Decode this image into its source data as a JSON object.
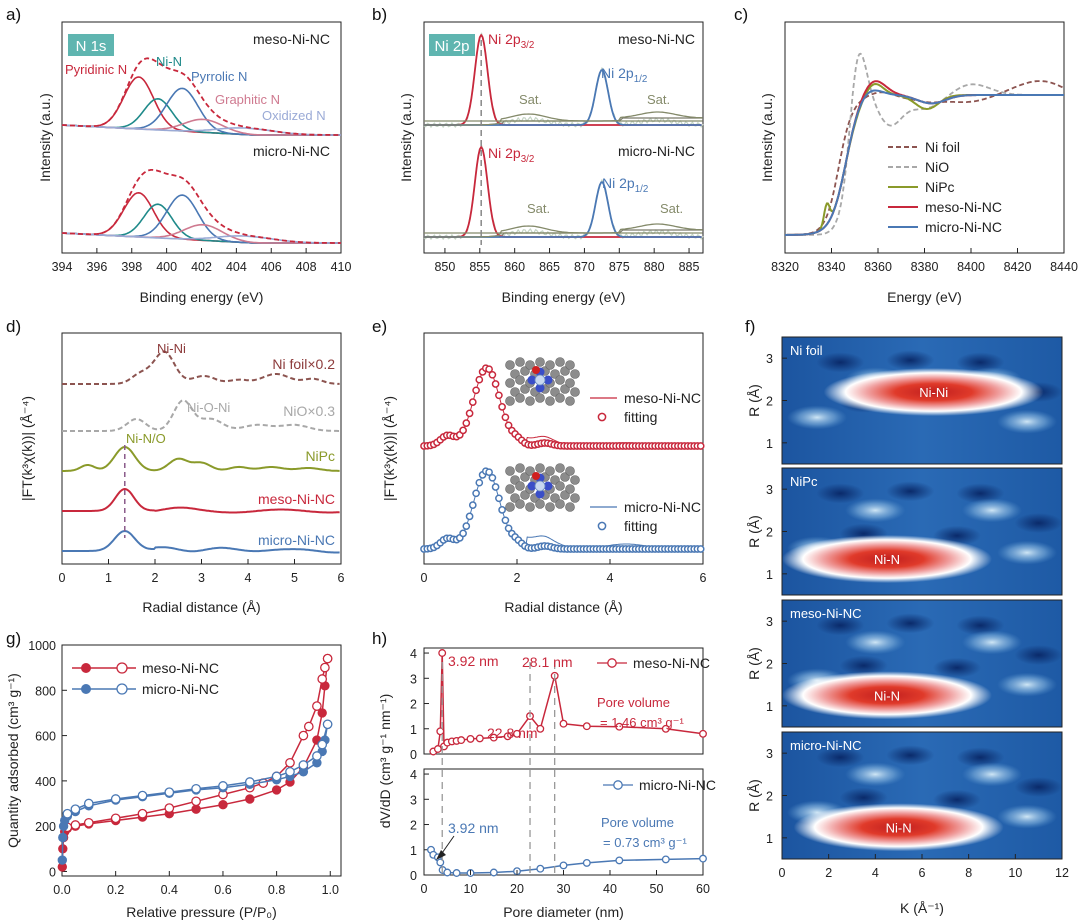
{
  "colors": {
    "red": "#c8283c",
    "blue": "#4a78b4",
    "teal": "#1f8a8a",
    "pink": "#cf7a90",
    "lav": "#9aaad6",
    "olive": "#8a9a2a",
    "olivetxt": "#848a6a",
    "brown": "#8c5450",
    "gray": "#a8a8a8",
    "darkred": "#8c3a3a",
    "badge": "#5fb5b0"
  },
  "chart_data": [
    {
      "panel": "a",
      "type": "line",
      "badge": "N 1s",
      "xlabel": "Binding energy (eV)",
      "ylabel": "Intensity (a.u.)",
      "xlim": [
        394,
        410
      ],
      "xticks": [
        "394",
        "396",
        "398",
        "400",
        "402",
        "404",
        "406",
        "408",
        "410"
      ],
      "ylim": [
        0,
        1
      ],
      "samples": [
        "meso-Ni-NC",
        "micro-Ni-NC"
      ],
      "peaks": [
        {
          "name": "Pyridinic N",
          "center": 398.4,
          "meso_height": 0.4,
          "micro_height": 0.34
        },
        {
          "name": "Ni-N",
          "center": 399.5,
          "meso_height": 0.24,
          "micro_height": 0.26
        },
        {
          "name": "Pyrrolic N",
          "center": 400.9,
          "meso_height": 0.33,
          "micro_height": 0.34
        },
        {
          "name": "Graphitic N",
          "center": 402.1,
          "meso_height": 0.1,
          "micro_height": 0.12
        },
        {
          "name": "Oxidized N",
          "center": 404.5,
          "meso_height": 0.05,
          "micro_height": 0.05
        }
      ]
    },
    {
      "panel": "b",
      "type": "line",
      "badge": "Ni 2p",
      "xlabel": "Binding energy (eV)",
      "ylabel": "Intensity (a.u.)",
      "xlim": [
        847,
        887
      ],
      "xticks": [
        "850",
        "855",
        "860",
        "865",
        "870",
        "875",
        "880",
        "885"
      ],
      "ylim": [
        0,
        1
      ],
      "samples": [
        "meso-Ni-NC",
        "micro-Ni-NC"
      ],
      "peaks": [
        {
          "name": "Ni 2p3/2",
          "center": 855.2
        },
        {
          "name": "Sat.",
          "center": 862.0
        },
        {
          "name": "Ni 2p1/2",
          "center": 872.5
        },
        {
          "name": "Sat.",
          "center": 880.5
        }
      ],
      "dashed_line_x": 855.2
    },
    {
      "panel": "c",
      "type": "line",
      "xlabel": "Energy (eV)",
      "ylabel": "Intensity (a.u.)",
      "xlim": [
        8320,
        8440
      ],
      "xticks": [
        "8320",
        "8340",
        "8360",
        "8380",
        "8400",
        "8420",
        "8440"
      ],
      "ylim": [
        0,
        1
      ],
      "legend_position": "bottom-right",
      "series": [
        {
          "name": "Ni foil",
          "style": "dash"
        },
        {
          "name": "NiO",
          "style": "dash"
        },
        {
          "name": "NiPc",
          "style": "solid"
        },
        {
          "name": "meso-Ni-NC",
          "style": "solid"
        },
        {
          "name": "micro-Ni-NC",
          "style": "solid"
        }
      ],
      "edge_energy": 8345,
      "white_line_peak": 8352
    },
    {
      "panel": "d",
      "type": "line",
      "xlabel": "Radial distance (Å)",
      "ylabel": "|FT(k³χ(k))| (Å⁻⁴)",
      "xlim": [
        0,
        6
      ],
      "xticks": [
        "0",
        "1",
        "2",
        "3",
        "4",
        "5",
        "6"
      ],
      "ylim": [
        0,
        1
      ],
      "series": [
        {
          "name": "Ni foil×0.2",
          "peak_label": "Ni-Ni",
          "peak_R": 2.2
        },
        {
          "name": "NiO×0.3",
          "peak_label": "Ni-O-Ni",
          "peak_R": 2.6
        },
        {
          "name": "NiPc",
          "peak_label": "Ni-N/O",
          "peak_R": 1.35
        },
        {
          "name": "meso-Ni-NC",
          "peak_R": 1.35
        },
        {
          "name": "micro-Ni-NC",
          "peak_R": 1.35
        }
      ],
      "dashed_line_x": 1.35
    },
    {
      "panel": "e",
      "type": "line",
      "xlabel": "Radial distance (Å)",
      "ylabel": "|FT(k³χ(k))| (Å⁻⁴)",
      "xlim": [
        0,
        6
      ],
      "xticks": [
        "0",
        "2",
        "4",
        "6"
      ],
      "ylim": [
        0,
        1
      ],
      "series": [
        {
          "name": "meso-Ni-NC",
          "fit_name": "fitting",
          "peak_R": 1.35
        },
        {
          "name": "micro-Ni-NC",
          "fit_name": "fitting",
          "peak_R": 1.35
        }
      ]
    },
    {
      "panel": "f",
      "type": "heatmap",
      "xlabel": "K (Å⁻¹)",
      "ylabel": "R (Å)",
      "xlim": [
        0,
        12
      ],
      "xticks": [
        "0",
        "2",
        "4",
        "6",
        "8",
        "10",
        "12"
      ],
      "ylim": [
        0.5,
        3.5
      ],
      "yticks": [
        "1",
        "2",
        "3"
      ],
      "maps": [
        {
          "sample": "Ni foil",
          "feature": "Ni-Ni",
          "k_center": 6.5,
          "R_center": 2.2
        },
        {
          "sample": "NiPc",
          "feature": "Ni-N",
          "k_center": 4.5,
          "R_center": 1.35
        },
        {
          "sample": "meso-Ni-NC",
          "feature": "Ni-N",
          "k_center": 4.5,
          "R_center": 1.25
        },
        {
          "sample": "micro-Ni-NC",
          "feature": "Ni-N",
          "k_center": 5.0,
          "R_center": 1.25
        }
      ]
    },
    {
      "panel": "g",
      "type": "line",
      "xlabel": "Relative pressure (P/P₀)",
      "ylabel": "Quantity adsorbed (cm³ g⁻¹)",
      "xlim": [
        0,
        1.04
      ],
      "xticks": [
        "0.0",
        "0.2",
        "0.4",
        "0.6",
        "0.8",
        "1.0"
      ],
      "ylim": [
        -20,
        1000
      ],
      "yticks": [
        "0",
        "200",
        "400",
        "600",
        "800",
        "1000"
      ],
      "series": [
        {
          "name": "meso-Ni-NC",
          "adsorption": [
            [
              0.001,
              20
            ],
            [
              0.003,
              100
            ],
            [
              0.006,
              150
            ],
            [
              0.01,
              175
            ],
            [
              0.02,
              190
            ],
            [
              0.05,
              200
            ],
            [
              0.1,
              210
            ],
            [
              0.2,
              225
            ],
            [
              0.3,
              240
            ],
            [
              0.4,
              255
            ],
            [
              0.5,
              275
            ],
            [
              0.6,
              295
            ],
            [
              0.7,
              320
            ],
            [
              0.8,
              360
            ],
            [
              0.85,
              395
            ],
            [
              0.9,
              460
            ],
            [
              0.95,
              580
            ],
            [
              0.97,
              700
            ],
            [
              0.98,
              820
            ],
            [
              0.99,
              940
            ]
          ],
          "desorption": [
            [
              0.99,
              940
            ],
            [
              0.98,
              900
            ],
            [
              0.97,
              850
            ],
            [
              0.95,
              730
            ],
            [
              0.92,
              640
            ],
            [
              0.9,
              600
            ],
            [
              0.85,
              480
            ],
            [
              0.8,
              420
            ],
            [
              0.75,
              390
            ],
            [
              0.7,
              370
            ],
            [
              0.6,
              340
            ],
            [
              0.5,
              310
            ],
            [
              0.4,
              280
            ],
            [
              0.3,
              255
            ],
            [
              0.2,
              235
            ],
            [
              0.1,
              215
            ],
            [
              0.05,
              205
            ],
            [
              0.02,
              195
            ]
          ]
        },
        {
          "name": "micro-Ni-NC",
          "adsorption": [
            [
              0.001,
              50
            ],
            [
              0.003,
              150
            ],
            [
              0.006,
              200
            ],
            [
              0.01,
              225
            ],
            [
              0.02,
              245
            ],
            [
              0.05,
              265
            ],
            [
              0.1,
              290
            ],
            [
              0.2,
              315
            ],
            [
              0.3,
              330
            ],
            [
              0.4,
              345
            ],
            [
              0.5,
              360
            ],
            [
              0.6,
              370
            ],
            [
              0.7,
              385
            ],
            [
              0.8,
              405
            ],
            [
              0.85,
              420
            ],
            [
              0.9,
              440
            ],
            [
              0.95,
              480
            ],
            [
              0.97,
              530
            ],
            [
              0.98,
              580
            ],
            [
              0.99,
              650
            ]
          ],
          "desorption": [
            [
              0.99,
              650
            ],
            [
              0.97,
              560
            ],
            [
              0.95,
              510
            ],
            [
              0.9,
              470
            ],
            [
              0.85,
              440
            ],
            [
              0.8,
              420
            ],
            [
              0.7,
              395
            ],
            [
              0.6,
              378
            ],
            [
              0.5,
              365
            ],
            [
              0.4,
              350
            ],
            [
              0.3,
              335
            ],
            [
              0.2,
              320
            ],
            [
              0.1,
              300
            ],
            [
              0.05,
              275
            ],
            [
              0.02,
              255
            ]
          ]
        }
      ]
    },
    {
      "panel": "h",
      "type": "line",
      "xlabel": "Pore diameter (nm)",
      "ylabel": "dV/dD (cm³ g⁻¹ nm⁻¹)",
      "xlim": [
        0,
        60
      ],
      "xticks": [
        "0",
        "10",
        "20",
        "30",
        "40",
        "50",
        "60"
      ],
      "top": {
        "name": "meso-Ni-NC",
        "ylim": [
          0,
          4.2
        ],
        "yticks": [
          "0",
          "1",
          "2",
          "3",
          "4"
        ],
        "points": [
          [
            2,
            0.1
          ],
          [
            3,
            0.2
          ],
          [
            3.5,
            0.9
          ],
          [
            3.92,
            4.0
          ],
          [
            4.3,
            0.3
          ],
          [
            5,
            0.45
          ],
          [
            6,
            0.5
          ],
          [
            7,
            0.52
          ],
          [
            8,
            0.55
          ],
          [
            10,
            0.6
          ],
          [
            12,
            0.62
          ],
          [
            15,
            0.65
          ],
          [
            18,
            0.7
          ],
          [
            20,
            0.8
          ],
          [
            22.8,
            1.5
          ],
          [
            25,
            1.0
          ],
          [
            28.1,
            3.1
          ],
          [
            30,
            1.2
          ],
          [
            35,
            1.1
          ],
          [
            42,
            1.08
          ],
          [
            52,
            1.0
          ],
          [
            60,
            0.8
          ]
        ],
        "annotations": [
          "3.92 nm",
          "22.8 nm",
          "28.1 nm"
        ],
        "pore_volume_label": "Pore volume",
        "pore_volume_value": "= 1.46 cm³ g⁻¹"
      },
      "bottom": {
        "name": "micro-Ni-NC",
        "ylim": [
          0,
          4.2
        ],
        "yticks": [
          "0",
          "1",
          "2",
          "3",
          "4"
        ],
        "points": [
          [
            1.5,
            1.0
          ],
          [
            2,
            0.8
          ],
          [
            3,
            0.7
          ],
          [
            3.5,
            0.5
          ],
          [
            4,
            0.2
          ],
          [
            5,
            0.1
          ],
          [
            7,
            0.08
          ],
          [
            10,
            0.08
          ],
          [
            15,
            0.1
          ],
          [
            20,
            0.15
          ],
          [
            25,
            0.25
          ],
          [
            30,
            0.38
          ],
          [
            35,
            0.48
          ],
          [
            42,
            0.58
          ],
          [
            52,
            0.62
          ],
          [
            60,
            0.65
          ]
        ],
        "annotations": [
          "3.92 nm"
        ],
        "pore_volume_label": "Pore volume",
        "pore_volume_value": "= 0.73 cm³ g⁻¹"
      },
      "dashed_lines_x": [
        3.92,
        22.8,
        28.1
      ]
    }
  ]
}
